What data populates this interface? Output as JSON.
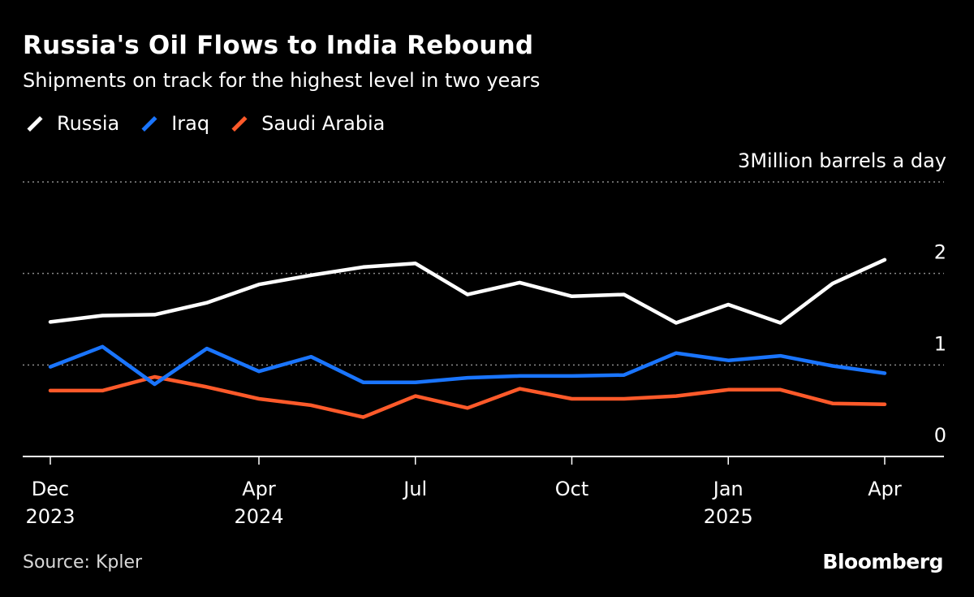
{
  "header": {
    "title": "Russia's Oil Flows to India Rebound",
    "subtitle": "Shipments on track for the highest level in two years"
  },
  "legend": [
    {
      "label": "Russia",
      "color": "#ffffff"
    },
    {
      "label": "Iraq",
      "color": "#1a75ff"
    },
    {
      "label": "Saudi Arabia",
      "color": "#ff5a2a"
    }
  ],
  "footer": {
    "source": "Source: Kpler",
    "brand": "Bloomberg"
  },
  "chart_data": {
    "type": "line",
    "x": [
      "2023-12",
      "2024-01",
      "2024-02",
      "2024-03",
      "2024-04",
      "2024-05",
      "2024-06",
      "2024-07",
      "2024-08",
      "2024-09",
      "2024-10",
      "2024-11",
      "2024-12",
      "2025-01",
      "2025-02",
      "2025-03",
      "2025-04"
    ],
    "series": [
      {
        "name": "Russia",
        "color": "#ffffff",
        "values": [
          1.47,
          1.54,
          1.55,
          1.68,
          1.88,
          1.98,
          2.07,
          2.11,
          1.77,
          1.9,
          1.75,
          1.77,
          1.46,
          1.66,
          1.46,
          1.89,
          2.15
        ]
      },
      {
        "name": "Iraq",
        "color": "#1a75ff",
        "values": [
          0.98,
          1.2,
          0.79,
          1.18,
          0.93,
          1.09,
          0.81,
          0.81,
          0.86,
          0.88,
          0.88,
          0.89,
          1.13,
          1.05,
          1.1,
          0.99,
          0.91
        ]
      },
      {
        "name": "Saudi Arabia",
        "color": "#ff5a2a",
        "values": [
          0.72,
          0.72,
          0.87,
          0.76,
          0.63,
          0.56,
          0.43,
          0.66,
          0.53,
          0.74,
          0.63,
          0.63,
          0.66,
          0.73,
          0.73,
          0.58,
          0.57
        ]
      }
    ],
    "y_ticks": [
      {
        "value": 0,
        "label": "0"
      },
      {
        "value": 1,
        "label": "1"
      },
      {
        "value": 2,
        "label": "2"
      },
      {
        "value": 3,
        "label": "3"
      }
    ],
    "y_unit": "Million barrels a day",
    "x_ticks": [
      {
        "x": "2023-12",
        "line1": "Dec",
        "line2": "2023"
      },
      {
        "x": "2024-04",
        "line1": "Apr",
        "line2": "2024"
      },
      {
        "x": "2024-07",
        "line1": "Jul",
        "line2": ""
      },
      {
        "x": "2024-10",
        "line1": "Oct",
        "line2": ""
      },
      {
        "x": "2025-01",
        "line1": "Jan",
        "line2": "2025"
      },
      {
        "x": "2025-04",
        "line1": "Apr",
        "line2": ""
      }
    ],
    "ylim": [
      0,
      3
    ],
    "grid": true
  }
}
